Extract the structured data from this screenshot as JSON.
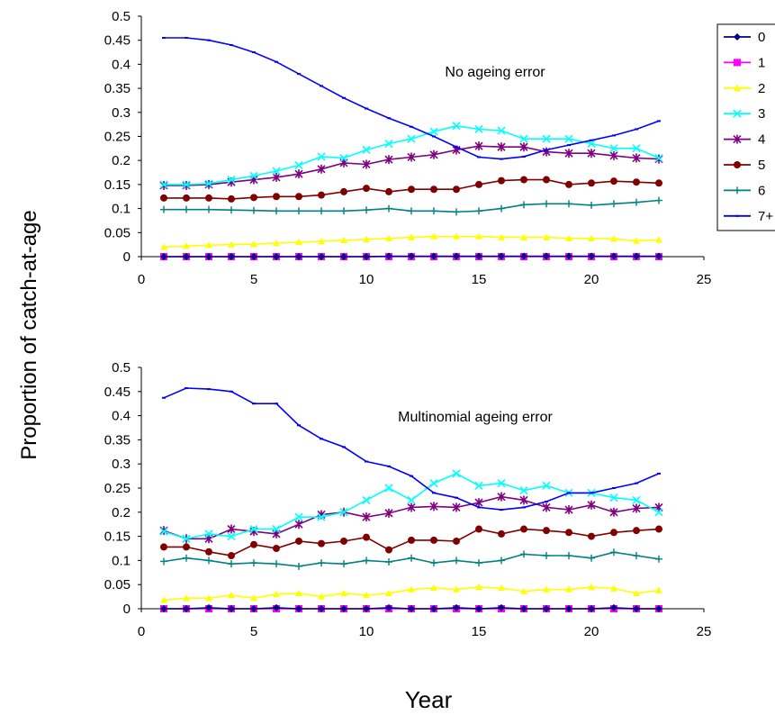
{
  "figure": {
    "ylabel": "Proportion of catch-at-age",
    "xlabel": "Year"
  },
  "legend": {
    "entries": [
      {
        "name": "0",
        "color": "#000080",
        "marker": "diamond"
      },
      {
        "name": "1",
        "color": "#ff00ff",
        "marker": "square"
      },
      {
        "name": "2",
        "color": "#ffff00",
        "marker": "triangle"
      },
      {
        "name": "3",
        "color": "#00ffff",
        "marker": "x"
      },
      {
        "name": "4",
        "color": "#800080",
        "marker": "star"
      },
      {
        "name": "5",
        "color": "#800000",
        "marker": "circle"
      },
      {
        "name": "6",
        "color": "#008080",
        "marker": "plus"
      },
      {
        "name": "7+",
        "color": "#0000ff",
        "marker": "dash"
      }
    ]
  },
  "chart_data": [
    {
      "type": "line",
      "title": "No ageing error",
      "xlim": [
        0,
        25
      ],
      "ylim": [
        0,
        0.5
      ],
      "xticks": [
        "0",
        "5",
        "10",
        "15",
        "20",
        "25"
      ],
      "yticks": [
        "0",
        "0.05",
        "0.1",
        "0.15",
        "0.2",
        "0.25",
        "0.3",
        "0.35",
        "0.4",
        "0.45",
        "0.5"
      ],
      "x": [
        1,
        2,
        3,
        4,
        5,
        6,
        7,
        8,
        9,
        10,
        11,
        12,
        13,
        14,
        15,
        16,
        17,
        18,
        19,
        20,
        21,
        22,
        23
      ],
      "series": [
        {
          "name": "0",
          "values": [
            0,
            0,
            0,
            0,
            0,
            0,
            0,
            0,
            0,
            0,
            0.001,
            0.001,
            0.001,
            0.001,
            0.001,
            0.001,
            0.001,
            0.001,
            0.001,
            0.001,
            0.001,
            0.001,
            0.001
          ]
        },
        {
          "name": "1",
          "values": [
            0,
            0,
            0,
            0,
            0,
            0,
            0,
            0,
            0,
            0,
            0,
            0,
            0,
            0,
            0,
            0,
            0,
            0,
            0,
            0,
            0,
            0,
            0
          ]
        },
        {
          "name": "2",
          "values": [
            0.02,
            0.022,
            0.024,
            0.025,
            0.026,
            0.028,
            0.03,
            0.032,
            0.034,
            0.036,
            0.038,
            0.04,
            0.042,
            0.042,
            0.042,
            0.04,
            0.04,
            0.04,
            0.038,
            0.038,
            0.037,
            0.033,
            0.035
          ]
        },
        {
          "name": "3",
          "values": [
            0.15,
            0.15,
            0.152,
            0.16,
            0.168,
            0.178,
            0.19,
            0.208,
            0.205,
            0.222,
            0.235,
            0.245,
            0.26,
            0.272,
            0.265,
            0.262,
            0.245,
            0.245,
            0.245,
            0.235,
            0.225,
            0.225,
            0.205
          ]
        },
        {
          "name": "4",
          "values": [
            0.148,
            0.148,
            0.15,
            0.155,
            0.16,
            0.165,
            0.172,
            0.182,
            0.195,
            0.192,
            0.202,
            0.207,
            0.212,
            0.222,
            0.23,
            0.228,
            0.228,
            0.218,
            0.215,
            0.215,
            0.21,
            0.205,
            0.203
          ]
        },
        {
          "name": "5",
          "values": [
            0.122,
            0.122,
            0.122,
            0.12,
            0.123,
            0.125,
            0.125,
            0.128,
            0.135,
            0.142,
            0.135,
            0.14,
            0.14,
            0.14,
            0.15,
            0.158,
            0.16,
            0.16,
            0.15,
            0.153,
            0.157,
            0.155,
            0.153
          ]
        },
        {
          "name": "6",
          "values": [
            0.098,
            0.098,
            0.098,
            0.097,
            0.096,
            0.095,
            0.095,
            0.095,
            0.095,
            0.097,
            0.1,
            0.095,
            0.095,
            0.093,
            0.095,
            0.1,
            0.108,
            0.11,
            0.11,
            0.107,
            0.11,
            0.113,
            0.117
          ]
        },
        {
          "name": "7+",
          "values": [
            0.455,
            0.455,
            0.45,
            0.44,
            0.425,
            0.405,
            0.38,
            0.355,
            0.33,
            0.308,
            0.288,
            0.27,
            0.25,
            0.228,
            0.207,
            0.203,
            0.208,
            0.222,
            0.232,
            0.242,
            0.252,
            0.265,
            0.282
          ]
        }
      ]
    },
    {
      "type": "line",
      "title": "Multinomial ageing error",
      "xlim": [
        0,
        25
      ],
      "ylim": [
        0,
        0.5
      ],
      "xticks": [
        "0",
        "5",
        "10",
        "15",
        "20",
        "25"
      ],
      "yticks": [
        "0",
        "0.05",
        "0.1",
        "0.15",
        "0.2",
        "0.25",
        "0.3",
        "0.35",
        "0.4",
        "0.45",
        "0.5"
      ],
      "x": [
        1,
        2,
        3,
        4,
        5,
        6,
        7,
        8,
        9,
        10,
        11,
        12,
        13,
        14,
        15,
        16,
        17,
        18,
        19,
        20,
        21,
        22,
        23
      ],
      "series": [
        {
          "name": "0",
          "values": [
            0,
            0,
            0.002,
            0,
            0,
            0.002,
            0,
            0,
            0,
            0,
            0.002,
            0,
            0,
            0.002,
            0,
            0.002,
            0,
            0,
            0,
            0,
            0.002,
            0,
            0
          ]
        },
        {
          "name": "1",
          "values": [
            0,
            0,
            0,
            0,
            0,
            0,
            0,
            0,
            0,
            0,
            0,
            0,
            0,
            0,
            0,
            0,
            0,
            0,
            0,
            0,
            0,
            0,
            0
          ]
        },
        {
          "name": "2",
          "values": [
            0.018,
            0.022,
            0.022,
            0.028,
            0.022,
            0.03,
            0.032,
            0.025,
            0.032,
            0.028,
            0.032,
            0.04,
            0.043,
            0.04,
            0.045,
            0.043,
            0.036,
            0.04,
            0.04,
            0.045,
            0.042,
            0.032,
            0.038
          ]
        },
        {
          "name": "3",
          "values": [
            0.16,
            0.145,
            0.155,
            0.15,
            0.165,
            0.165,
            0.19,
            0.19,
            0.2,
            0.225,
            0.25,
            0.225,
            0.26,
            0.28,
            0.255,
            0.26,
            0.245,
            0.255,
            0.24,
            0.24,
            0.23,
            0.225,
            0.2
          ]
        },
        {
          "name": "4",
          "values": [
            0.162,
            0.145,
            0.145,
            0.165,
            0.16,
            0.155,
            0.175,
            0.195,
            0.2,
            0.19,
            0.198,
            0.21,
            0.212,
            0.21,
            0.22,
            0.232,
            0.225,
            0.21,
            0.205,
            0.215,
            0.2,
            0.208,
            0.21
          ]
        },
        {
          "name": "5",
          "values": [
            0.128,
            0.128,
            0.118,
            0.11,
            0.133,
            0.125,
            0.14,
            0.135,
            0.14,
            0.148,
            0.122,
            0.142,
            0.142,
            0.14,
            0.165,
            0.155,
            0.165,
            0.162,
            0.158,
            0.15,
            0.158,
            0.162,
            0.165
          ]
        },
        {
          "name": "6",
          "values": [
            0.098,
            0.105,
            0.1,
            0.093,
            0.095,
            0.093,
            0.088,
            0.095,
            0.093,
            0.1,
            0.097,
            0.105,
            0.095,
            0.1,
            0.095,
            0.1,
            0.113,
            0.11,
            0.11,
            0.105,
            0.117,
            0.11,
            0.103
          ]
        },
        {
          "name": "7+",
          "values": [
            0.437,
            0.457,
            0.455,
            0.45,
            0.425,
            0.425,
            0.38,
            0.352,
            0.335,
            0.305,
            0.295,
            0.275,
            0.24,
            0.23,
            0.21,
            0.205,
            0.21,
            0.222,
            0.24,
            0.24,
            0.25,
            0.26,
            0.28
          ]
        }
      ]
    }
  ]
}
